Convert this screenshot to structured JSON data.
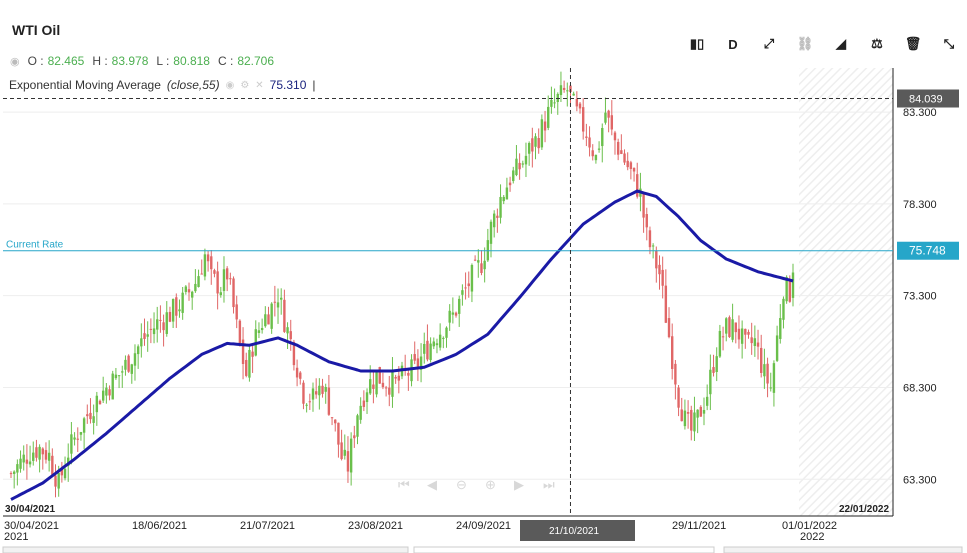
{
  "instrument": {
    "title": "WTI Oil"
  },
  "ohlc": {
    "o_label": "O :",
    "o": "82.465",
    "h_label": "H :",
    "h": "83.978",
    "l_label": "L :",
    "l": "80.818",
    "c_label": "C :",
    "c": "82.706"
  },
  "indicator": {
    "name": "Exponential Moving Average",
    "params": "(close,55)",
    "value": "75.310",
    "cursor_mark": "|"
  },
  "toolbar": {
    "tools": [
      {
        "name": "candle-type-icon",
        "glyph": "▮▯"
      },
      {
        "name": "period-button",
        "glyph": "D"
      },
      {
        "name": "draw-line-icon",
        "glyph": "⤢"
      },
      {
        "name": "magnet-icon",
        "glyph": "⛓"
      },
      {
        "name": "indicators-icon",
        "glyph": "◢"
      },
      {
        "name": "balance-icon",
        "glyph": "⚖"
      },
      {
        "name": "trash-icon",
        "glyph": "🗑"
      },
      {
        "name": "collapse-icon",
        "glyph": "⤡"
      }
    ]
  },
  "colors": {
    "up": "#6abf4b",
    "down": "#e06666",
    "ema": "#1a1aa6",
    "current_rate": "#26a6c9",
    "crosshair": "#333333",
    "badge_dark": "#5a5a5a"
  },
  "chart_data": {
    "type": "candlestick",
    "title": "WTI Oil",
    "ylim": [
      61.3,
      85.7
    ],
    "y_ticks": [
      "63.300",
      "68.300",
      "73.300",
      "78.300",
      "83.300"
    ],
    "x_ticks": [
      "30/04/2021",
      "18/06/2021",
      "21/07/2021",
      "23/08/2021",
      "24/09/2021",
      "21/10/2021",
      "29/11/2021",
      "01/01/2022"
    ],
    "year_ticks": [
      {
        "at": "30/04/2021",
        "label": "2021"
      },
      {
        "at": "01/01/2022",
        "label": "2022"
      }
    ],
    "range_start": "30/04/2021",
    "range_end": "22/01/2022",
    "current_rate_label": "Current Rate",
    "current_rate": "75.748",
    "crosshair_price": "84.039",
    "crosshair_date": "21/10/2021",
    "close_path": [
      [
        0,
        63.6
      ],
      [
        3,
        64.2
      ],
      [
        6,
        64.8
      ],
      [
        9,
        65.0
      ],
      [
        12,
        64.6
      ],
      [
        15,
        63.0
      ],
      [
        18,
        64.8
      ],
      [
        22,
        66.2
      ],
      [
        26,
        67.4
      ],
      [
        30,
        68.3
      ],
      [
        34,
        69.0
      ],
      [
        38,
        70.0
      ],
      [
        42,
        71.0
      ],
      [
        46,
        71.8
      ],
      [
        50,
        72.3
      ],
      [
        54,
        73.0
      ],
      [
        58,
        74.0
      ],
      [
        61,
        75.5
      ],
      [
        63,
        74.2
      ],
      [
        66,
        73.8
      ],
      [
        68,
        74.5
      ],
      [
        70,
        72.6
      ],
      [
        72,
        70.5
      ],
      [
        74,
        69.0
      ],
      [
        76,
        70.6
      ],
      [
        79,
        71.9
      ],
      [
        82,
        72.7
      ],
      [
        84,
        73.4
      ],
      [
        86,
        72.0
      ],
      [
        89,
        70.2
      ],
      [
        92,
        68.0
      ],
      [
        95,
        67.7
      ],
      [
        98,
        68.5
      ],
      [
        101,
        66.8
      ],
      [
        104,
        64.5
      ],
      [
        106,
        64.0
      ],
      [
        109,
        67.0
      ],
      [
        112,
        68.4
      ],
      [
        115,
        68.9
      ],
      [
        118,
        68.6
      ],
      [
        121,
        68.5
      ],
      [
        124,
        69.0
      ],
      [
        127,
        69.3
      ],
      [
        130,
        70.2
      ],
      [
        133,
        71.0
      ],
      [
        136,
        71.6
      ],
      [
        139,
        72.2
      ],
      [
        142,
        73.3
      ],
      [
        145,
        74.3
      ],
      [
        148,
        75.1
      ],
      [
        151,
        77.0
      ],
      [
        154,
        78.6
      ],
      [
        157,
        79.7
      ],
      [
        160,
        80.3
      ],
      [
        163,
        81.2
      ],
      [
        166,
        82.0
      ],
      [
        169,
        83.2
      ],
      [
        172,
        84.0
      ],
      [
        175,
        84.5
      ],
      [
        178,
        83.2
      ],
      [
        181,
        82.2
      ],
      [
        184,
        80.8
      ],
      [
        187,
        83.3
      ],
      [
        189,
        82.1
      ],
      [
        192,
        81.0
      ],
      [
        195,
        80.0
      ],
      [
        198,
        78.8
      ],
      [
        200,
        76.5
      ],
      [
        202,
        75.5
      ],
      [
        204,
        74.5
      ],
      [
        206,
        72.2
      ],
      [
        208,
        70.0
      ],
      [
        210,
        67.8
      ],
      [
        212,
        66.5
      ],
      [
        214,
        65.9
      ],
      [
        216,
        66.6
      ],
      [
        219,
        68.0
      ],
      [
        222,
        70.5
      ],
      [
        225,
        71.5
      ],
      [
        228,
        71.6
      ],
      [
        231,
        70.5
      ],
      [
        234,
        70.8
      ],
      [
        237,
        69.0
      ],
      [
        239,
        68.3
      ],
      [
        241,
        71.0
      ],
      [
        243,
        73.8
      ],
      [
        245,
        73.5
      ],
      [
        246,
        75.0
      ]
    ],
    "ema_path": [
      [
        0,
        62.2
      ],
      [
        10,
        63.1
      ],
      [
        20,
        64.4
      ],
      [
        30,
        65.8
      ],
      [
        40,
        67.3
      ],
      [
        50,
        68.8
      ],
      [
        60,
        70.1
      ],
      [
        68,
        70.7
      ],
      [
        75,
        70.6
      ],
      [
        84,
        71.0
      ],
      [
        90,
        70.6
      ],
      [
        100,
        69.7
      ],
      [
        110,
        69.2
      ],
      [
        120,
        69.2
      ],
      [
        130,
        69.4
      ],
      [
        140,
        70.1
      ],
      [
        150,
        71.2
      ],
      [
        160,
        73.2
      ],
      [
        170,
        75.3
      ],
      [
        180,
        77.2
      ],
      [
        190,
        78.4
      ],
      [
        197,
        79.0
      ],
      [
        203,
        78.7
      ],
      [
        210,
        77.6
      ],
      [
        217,
        76.3
      ],
      [
        225,
        75.3
      ],
      [
        235,
        74.6
      ],
      [
        246,
        74.1
      ]
    ]
  }
}
